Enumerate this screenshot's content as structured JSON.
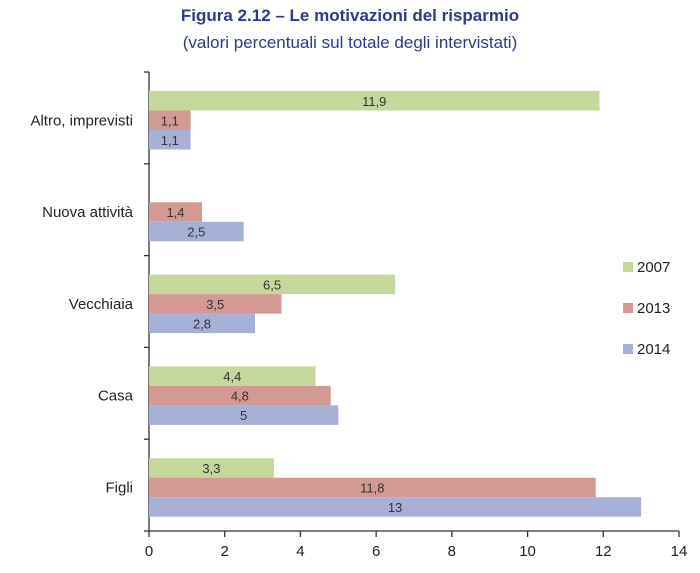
{
  "chart_data": {
    "type": "bar",
    "orientation": "horizontal",
    "title": "Figura 2.12 – Le motivazioni del risparmio",
    "subtitle": "(valori percentuali sul totale degli intervistati)",
    "categories": [
      "Altro, imprevisti",
      "Nuova attività",
      "Vecchiaia",
      "Casa",
      "Figli"
    ],
    "series": [
      {
        "name": "2007",
        "color": "#c5d89b",
        "values": [
          11.9,
          null,
          6.5,
          4.4,
          3.3
        ],
        "labels": [
          "11,9",
          "",
          "6,5",
          "4,4",
          "3,3"
        ]
      },
      {
        "name": "2013",
        "color": "#d39a93",
        "values": [
          1.1,
          1.4,
          3.5,
          4.8,
          11.8
        ],
        "labels": [
          "1,1",
          "1,4",
          "3,5",
          "4,8",
          "11,8"
        ]
      },
      {
        "name": "2014",
        "color": "#a7b1d6",
        "values": [
          1.1,
          2.5,
          2.8,
          5,
          13
        ],
        "labels": [
          "1,1",
          "2,5",
          "2,8",
          "5",
          "13"
        ]
      }
    ],
    "xlim": [
      0,
      14
    ],
    "xticks": [
      "0",
      "2",
      "4",
      "6",
      "8",
      "10",
      "12",
      "14"
    ],
    "legend_position": "right",
    "grid": false
  }
}
